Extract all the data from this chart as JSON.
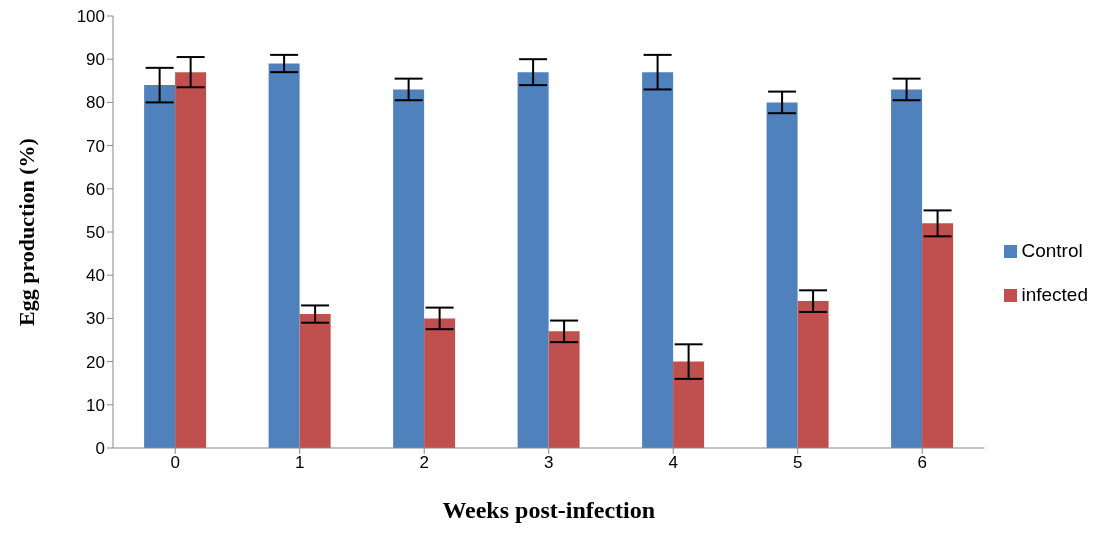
{
  "chart_data": {
    "type": "bar",
    "xlabel": "Weeks post-infection",
    "ylabel": "Egg production (%)",
    "categories": [
      "0",
      "1",
      "2",
      "3",
      "4",
      "5",
      "6"
    ],
    "series": [
      {
        "name": "Control",
        "color": "#4f81bd",
        "values": [
          84,
          89,
          83,
          87,
          87,
          80,
          83
        ],
        "errors": [
          4,
          2,
          2.5,
          3,
          4,
          2.5,
          2.5
        ]
      },
      {
        "name": "infected",
        "color": "#c0504d",
        "values": [
          87,
          31,
          30,
          27,
          20,
          34,
          52
        ],
        "errors": [
          3.5,
          2,
          2.5,
          2.5,
          4,
          2.5,
          3
        ]
      }
    ],
    "ylim": [
      0,
      100
    ],
    "yticks": [
      0,
      10,
      20,
      30,
      40,
      50,
      60,
      70,
      80,
      90,
      100
    ],
    "grid": false,
    "legend": "right"
  }
}
